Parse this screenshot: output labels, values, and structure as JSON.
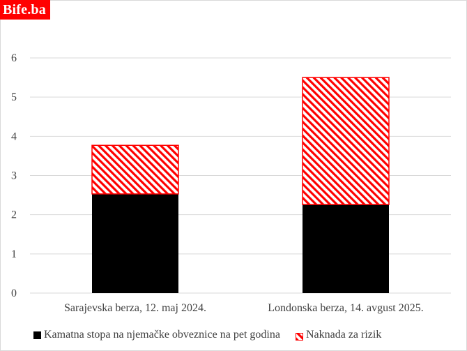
{
  "brand": {
    "text": "Bife.ba",
    "color": "#ff0000"
  },
  "chart_data": {
    "type": "bar",
    "stacked": true,
    "categories": [
      "Sarajevska berza, 12. maj  2024.",
      "Londonska berza, 14. avgust  2025."
    ],
    "series": [
      {
        "name": "Kamatna stopa  na njemačke obveznice na pet godina",
        "values": [
          2.53,
          2.26
        ],
        "color": "#000000",
        "pattern": "solid"
      },
      {
        "name": "Naknada za rizik",
        "values": [
          1.24,
          3.24
        ],
        "color": "#ff0000",
        "pattern": "diagonal-hatch"
      }
    ],
    "ylim": [
      0,
      6
    ],
    "yticks": [
      "0",
      "1",
      "2",
      "3",
      "4",
      "5",
      "6"
    ],
    "grid": true,
    "legend_position": "bottom",
    "title": "",
    "xlabel": "",
    "ylabel": ""
  }
}
